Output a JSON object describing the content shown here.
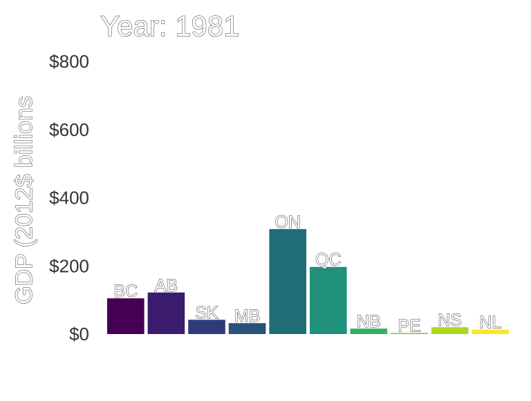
{
  "title": "Year: 1981",
  "chart_data": {
    "type": "bar",
    "title": "Year: 1981",
    "xlabel": "",
    "ylabel": "GDP (2012$ billions",
    "ylim": [
      0,
      800
    ],
    "yticks": [
      0,
      200,
      400,
      600,
      800
    ],
    "ytick_labels": [
      "$0",
      "$200",
      "$400",
      "$600",
      "$800"
    ],
    "grid": false,
    "legend": "none",
    "categories": [
      "BC",
      "AB",
      "SK",
      "MB",
      "ON",
      "QC",
      "NB",
      "PE",
      "NS",
      "NL"
    ],
    "values": [
      105,
      122,
      42,
      32,
      308,
      197,
      16,
      3,
      20,
      13
    ],
    "colors": [
      "#440154",
      "#3b1c6e",
      "#2f3b79",
      "#2a5176",
      "#1f6e77",
      "#20917a",
      "#35b05f",
      "#76c442",
      "#a8d91f",
      "#fde725"
    ]
  }
}
